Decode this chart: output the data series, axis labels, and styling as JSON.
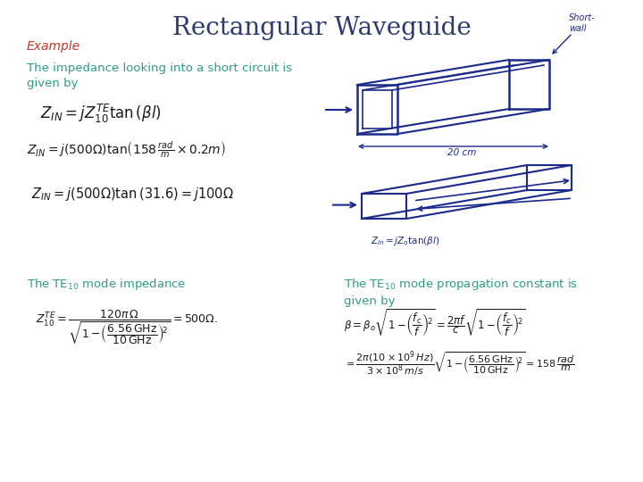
{
  "title": "Rectangular Waveguide",
  "title_color": "#2E3A6E",
  "title_fontsize": 20,
  "background_color": "#ffffff",
  "example_text": "Example",
  "example_color": "#c0392b",
  "example_fontsize": 10,
  "impedance_label": "The impedance looking into a short circuit is\ngiven by",
  "impedance_color": "#2E9B8A",
  "impedance_fontsize": 9.5,
  "te10_impedance_label": "The TE$_{10}$ mode impedance",
  "te10_impedance_color": "#2E9B8A",
  "te10_impedance_fontsize": 9.5,
  "te10_prop_label": "The TE$_{10}$ mode propagation constant is\ngiven by",
  "te10_prop_color": "#2E9B8A",
  "te10_prop_fontsize": 9.5,
  "eq1": "$Z_{IN} = jZ_{10}^{TE}\\tan\\left(\\beta l\\right)$",
  "eq2": "$Z_{IN} = j\\left(500\\Omega\\right)\\tan\\!\\left(158\\,\\frac{rad}{m}\\times 0.2m\\right)$",
  "eq3": "$Z_{IN} = j\\left(500\\Omega\\right)\\tan\\left(31.6\\right) = j100\\Omega$",
  "eq_impedance": "$Z_{10}^{TE} = \\dfrac{120\\pi\\,\\Omega}{\\sqrt{1-\\!\\left(\\dfrac{6.56\\,\\mathrm{GHz}}{10\\,\\mathrm{GHz}}\\right)^{\\!2}}} = 500\\Omega.$",
  "eq_beta": "$\\beta = \\beta_o\\sqrt{1-\\!\\left(\\dfrac{f_c}{f}\\right)^{\\!2}} = \\dfrac{2\\pi f}{c}\\sqrt{1-\\!\\left(\\dfrac{f_c}{f}\\right)^{\\!2}}$",
  "eq_beta2": "$= \\dfrac{2\\pi\\left(10\\times10^{9}\\,Hz\\right)}{3\\times10^{8}\\,m/s}\\sqrt{1-\\!\\left(\\dfrac{6.56\\,\\mathrm{GHz}}{10\\,\\mathrm{GHz}}\\right)^{\\!2}} = 158\\,\\dfrac{rad}{m}$",
  "eq_color": "#1a1a1a",
  "navy": "#1a2a8a",
  "lw": 1.5
}
